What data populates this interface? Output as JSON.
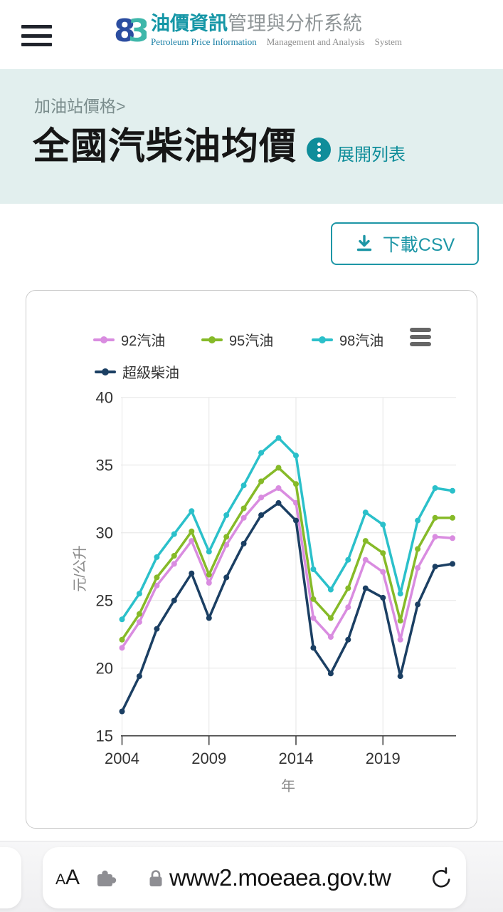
{
  "theme": {
    "accent_teal": "#0f8d9a",
    "hero_background": "#e2efee",
    "logo_blue": "#2b4da0",
    "logo_teal": "#3eb7aa"
  },
  "header": {
    "logo_mark_left": "8",
    "logo_mark_right": "3",
    "title_zh_primary": "油價資訊",
    "title_zh_secondary": "管理與分析系統",
    "subtitle_part1": "Petroleum Price Information",
    "subtitle_part2": "Management and Analysis",
    "subtitle_part3": "System"
  },
  "hero": {
    "breadcrumb": "加油站價格>",
    "page_title": "全國汽柴油均價",
    "expand_link_label": "展開列表"
  },
  "toolbar": {
    "download_csv_label": "下載CSV"
  },
  "chart_data": {
    "type": "line",
    "x": [
      2004,
      2005,
      2006,
      2007,
      2008,
      2009,
      2010,
      2011,
      2012,
      2013,
      2014,
      2015,
      2016,
      2017,
      2018,
      2019,
      2020,
      2021,
      2022,
      2023
    ],
    "series": [
      {
        "name": "92汽油",
        "color": "#d98ce0",
        "values": [
          21.5,
          23.4,
          26.1,
          27.7,
          29.4,
          26.3,
          29.1,
          31.1,
          32.6,
          33.3,
          32.2,
          23.7,
          22.3,
          24.5,
          28.0,
          27.1,
          22.1,
          27.4,
          29.7,
          29.6
        ]
      },
      {
        "name": "95汽油",
        "color": "#86ba28",
        "values": [
          22.1,
          24.0,
          26.7,
          28.3,
          30.1,
          26.9,
          29.7,
          31.8,
          33.8,
          34.8,
          33.6,
          25.1,
          23.7,
          25.9,
          29.4,
          28.5,
          23.5,
          28.8,
          31.1,
          31.1
        ]
      },
      {
        "name": "98汽油",
        "color": "#2bc0ca",
        "values": [
          23.6,
          25.5,
          28.2,
          29.9,
          31.6,
          28.6,
          31.3,
          33.5,
          35.9,
          37.0,
          35.7,
          27.3,
          25.8,
          28.0,
          31.5,
          30.6,
          25.5,
          30.9,
          33.3,
          33.1
        ]
      },
      {
        "name": "超級柴油",
        "color": "#1b3f63",
        "values": [
          16.8,
          19.4,
          22.9,
          25.0,
          27.0,
          23.7,
          26.7,
          29.2,
          31.3,
          32.2,
          30.9,
          21.5,
          19.6,
          22.1,
          25.9,
          25.2,
          19.4,
          24.7,
          27.5,
          27.7
        ]
      }
    ],
    "ylabel": "元/公升",
    "xlabel": "年",
    "ylim": [
      15,
      40
    ],
    "yticks": [
      15,
      20,
      25,
      30,
      35,
      40
    ],
    "xticks": [
      2004,
      2009,
      2014,
      2019
    ],
    "grid": true,
    "legend_position": "top"
  },
  "browser_bar": {
    "text_size_small": "A",
    "text_size_large": "A",
    "url": "www2.moeaea.gov.tw"
  }
}
